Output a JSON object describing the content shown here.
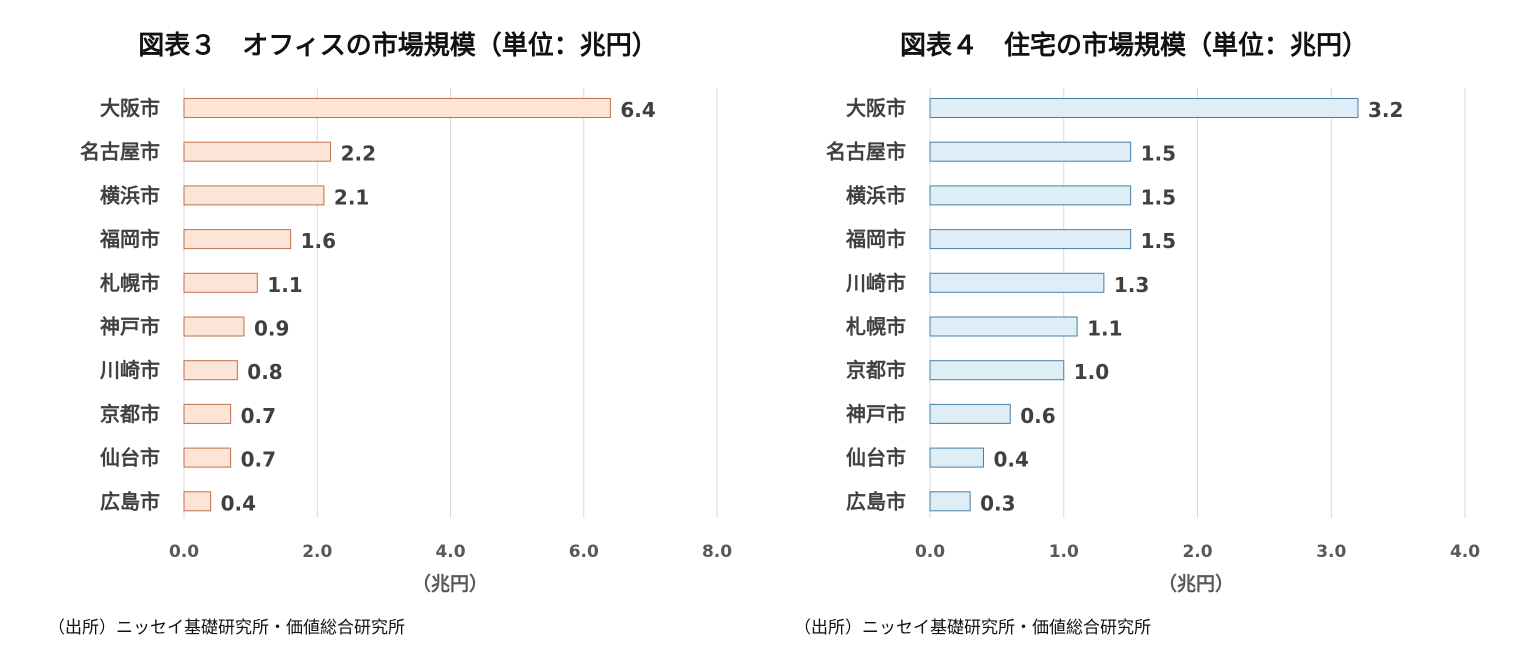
{
  "chart_data": [
    {
      "type": "bar",
      "orientation": "horizontal",
      "title": "図表３　オフィスの市場規模（単位：兆円）",
      "xlabel": "（兆円）",
      "source": "（出所）ニッセイ基礎研究所・価値総合研究所",
      "categories": [
        "大阪市",
        "名古屋市",
        "横浜市",
        "福岡市",
        "札幌市",
        "神戸市",
        "川崎市",
        "京都市",
        "仙台市",
        "広島市"
      ],
      "values": [
        6.4,
        2.2,
        2.1,
        1.6,
        1.1,
        0.9,
        0.8,
        0.7,
        0.7,
        0.4
      ],
      "value_labels": [
        "6.4",
        "2.2",
        "2.1",
        "1.6",
        "1.1",
        "0.9",
        "0.8",
        "0.7",
        "0.7",
        "0.4"
      ],
      "xlim": [
        0,
        8
      ],
      "ticks": [
        0,
        2,
        4,
        6,
        8
      ],
      "tick_labels": [
        "0.0",
        "2.0",
        "4.0",
        "6.0",
        "8.0"
      ],
      "grid": true,
      "legend": "none",
      "colors": {
        "fill": "#fce4d6",
        "stroke": "#c0704d"
      }
    },
    {
      "type": "bar",
      "orientation": "horizontal",
      "title": "図表４　住宅の市場規模（単位：兆円）",
      "xlabel": "（兆円）",
      "source": "（出所）ニッセイ基礎研究所・価値総合研究所",
      "categories": [
        "大阪市",
        "名古屋市",
        "横浜市",
        "福岡市",
        "川崎市",
        "札幌市",
        "京都市",
        "神戸市",
        "仙台市",
        "広島市"
      ],
      "values": [
        3.2,
        1.5,
        1.5,
        1.5,
        1.3,
        1.1,
        1.0,
        0.6,
        0.4,
        0.3
      ],
      "value_labels": [
        "3.2",
        "1.5",
        "1.5",
        "1.5",
        "1.3",
        "1.1",
        "1.0",
        "0.6",
        "0.4",
        "0.3"
      ],
      "xlim": [
        0,
        4
      ],
      "ticks": [
        0,
        1,
        2,
        3,
        4
      ],
      "tick_labels": [
        "0.0",
        "1.0",
        "2.0",
        "3.0",
        "4.0"
      ],
      "grid": true,
      "legend": "none",
      "colors": {
        "fill": "#deeef6",
        "stroke": "#4a7ea5"
      }
    }
  ]
}
